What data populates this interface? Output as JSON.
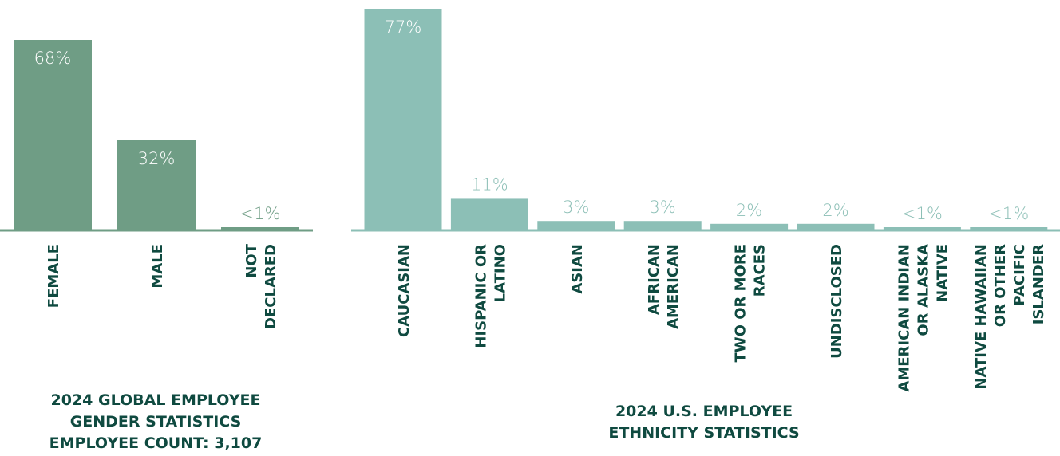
{
  "colors": {
    "gender_bar": "#6f9d85",
    "ethnicity_bar": "#8cbfb6",
    "gender_axis": "#6f9d85",
    "ethnicity_axis": "#8cbfb6",
    "label_on_bar": "#ffffff",
    "category_text": "#0f4a40"
  },
  "chart_data": [
    {
      "type": "bar",
      "categories": [
        "FEMALE",
        "MALE",
        "NOT DECLARED"
      ],
      "values": [
        68,
        32,
        0.5
      ],
      "value_labels": [
        "68%",
        "32%",
        "<1%"
      ],
      "title": [
        "2024 GLOBAL EMPLOYEE",
        "GENDER STATISTICS",
        "EMPLOYEE COUNT: 3,107"
      ],
      "ylim": [
        0,
        70
      ],
      "grid": false
    },
    {
      "type": "bar",
      "categories": [
        "CAUCASIAN",
        "HISPANIC OR LATINO",
        "ASIAN",
        "AFRICAN AMERICAN",
        "TWO OR MORE RACES",
        "UNDISCLOSED",
        "AMERICAN INDIAN OR ALASKA NATIVE",
        "NATIVE HAWAIIAN OR OTHER PACIFIC ISLANDER"
      ],
      "values": [
        77,
        11,
        3,
        3,
        2,
        2,
        0.5,
        0.5
      ],
      "value_labels": [
        "77%",
        "11%",
        "3%",
        "3%",
        "2%",
        "2%",
        "<1%",
        "<1%"
      ],
      "title": [
        "2024 U.S. EMPLOYEE",
        "ETHNICITY STATISTICS"
      ],
      "ylim": [
        0,
        77
      ],
      "grid": false
    }
  ]
}
